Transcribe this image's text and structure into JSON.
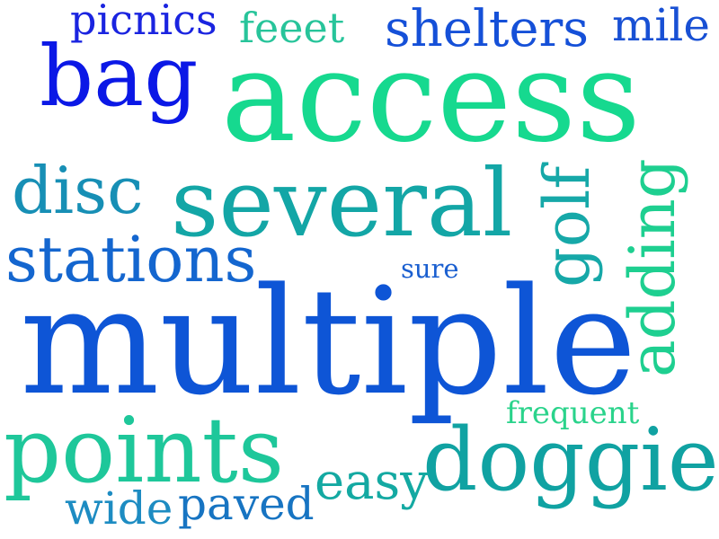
{
  "words": [
    {
      "text": "picnics",
      "color": "#1a24e0",
      "orientation": "horizontal"
    },
    {
      "text": "feeet",
      "color": "#27c49a",
      "orientation": "horizontal"
    },
    {
      "text": "shelters",
      "color": "#1550d8",
      "orientation": "horizontal"
    },
    {
      "text": "mile",
      "color": "#1850d4",
      "orientation": "horizontal"
    },
    {
      "text": "bag",
      "color": "#0b18e6",
      "orientation": "horizontal"
    },
    {
      "text": "access",
      "color": "#16d98f",
      "orientation": "horizontal"
    },
    {
      "text": "disc",
      "color": "#178fb5",
      "orientation": "horizontal"
    },
    {
      "text": "several",
      "color": "#13a6a6",
      "orientation": "horizontal"
    },
    {
      "text": "golf",
      "color": "#16a8a8",
      "orientation": "vertical"
    },
    {
      "text": "adding",
      "color": "#1ecf90",
      "orientation": "vertical"
    },
    {
      "text": "stations",
      "color": "#1466cf",
      "orientation": "horizontal"
    },
    {
      "text": "sure",
      "color": "#1a5fd0",
      "orientation": "horizontal"
    },
    {
      "text": "multiple",
      "color": "#0e55d6",
      "orientation": "horizontal"
    },
    {
      "text": "frequent",
      "color": "#2ad38b",
      "orientation": "horizontal"
    },
    {
      "text": "points",
      "color": "#1ec79a",
      "orientation": "horizontal"
    },
    {
      "text": "doggie",
      "color": "#10a2a2",
      "orientation": "horizontal"
    },
    {
      "text": "easy",
      "color": "#14a9a2",
      "orientation": "horizontal"
    },
    {
      "text": "wide",
      "color": "#1d8cc2",
      "orientation": "horizontal"
    },
    {
      "text": "paved",
      "color": "#1774c2",
      "orientation": "horizontal"
    }
  ]
}
